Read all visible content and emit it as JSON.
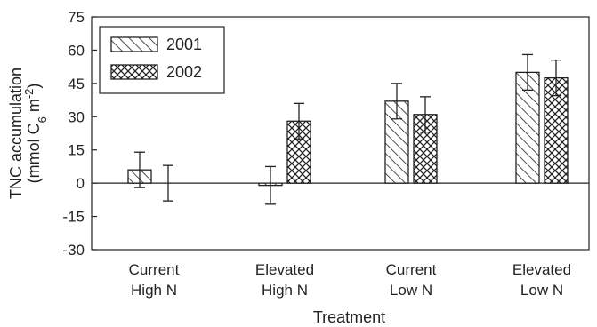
{
  "chart_data": {
    "type": "bar",
    "categories": [
      [
        "Current",
        "High N"
      ],
      [
        "Elevated",
        "High N"
      ],
      [
        "Current",
        "Low N"
      ],
      [
        "Elevated",
        "Low N"
      ]
    ],
    "series": [
      {
        "name": "2001",
        "pattern": "diagonal-hatch",
        "values": [
          6,
          -1,
          37,
          50
        ],
        "errors": [
          8,
          8.5,
          8,
          8
        ]
      },
      {
        "name": "2002",
        "pattern": "cross-hatch",
        "values": [
          0,
          28,
          31,
          47.5
        ],
        "errors": [
          8,
          8,
          8,
          8
        ]
      }
    ],
    "xlabel": "Treatment",
    "ylabel": {
      "line1": "TNC accumulation",
      "line2_prefix": "(mmol C",
      "line2_sub": "6",
      "line2_mid": " m",
      "line2_sup": "-2",
      "line2_end": ")"
    },
    "ylim": [
      -30,
      75
    ],
    "yticks": [
      -30,
      -15,
      0,
      15,
      30,
      45,
      60,
      75
    ],
    "grid": false,
    "zero_line": true,
    "legend_position": "top-left",
    "colors": {
      "bar_stroke": "#222222",
      "bar_fill": "#ffffff",
      "axis": "#222222"
    }
  }
}
